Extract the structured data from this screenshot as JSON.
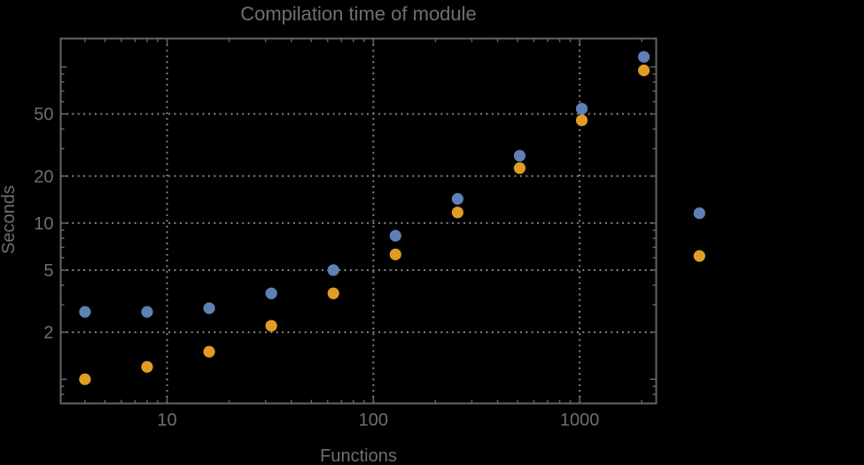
{
  "title": "Compilation time of module",
  "xlabel": "Functions",
  "ylabel": "Seconds",
  "colors": {
    "background": "#000000",
    "series_blue": "#5e81b5",
    "series_orange": "#e09c24",
    "text": "#6f6f6f",
    "frame": "#636363",
    "grid": "#858585"
  },
  "chart_data": {
    "type": "scatter",
    "x_scale": "log",
    "y_scale": "log",
    "title": "Compilation time of module",
    "xlabel": "Functions",
    "ylabel": "Seconds",
    "x": [
      4,
      8,
      16,
      32,
      64,
      128,
      256,
      512,
      1024,
      2048
    ],
    "series": [
      {
        "name": "series-1-blue",
        "color": "#5e81b5",
        "values": [
          2.7,
          2.7,
          2.85,
          3.55,
          5.0,
          8.3,
          14.3,
          27,
          54,
          116
        ]
      },
      {
        "name": "series-2-orange",
        "color": "#e09c24",
        "values": [
          1.0,
          1.2,
          1.5,
          2.2,
          3.55,
          6.3,
          11.7,
          22.5,
          45.5,
          95
        ]
      }
    ],
    "x_range": [
      3.05,
      2350
    ],
    "y_range": [
      0.7,
      152
    ],
    "x_ticks": [
      10,
      100,
      1000
    ],
    "x_tick_labels": [
      "10",
      "100",
      "1000"
    ],
    "y_ticks": [
      2,
      5,
      10,
      20,
      50
    ],
    "y_tick_labels": [
      "2",
      "5",
      "10",
      "20",
      "50"
    ],
    "grid": "dotted lines at labeled ticks only",
    "legend": {
      "position": "outside-right",
      "entries": [
        {
          "marker_color": "#5e81b5",
          "label": ""
        },
        {
          "marker_color": "#e09c24",
          "label": ""
        }
      ]
    }
  }
}
